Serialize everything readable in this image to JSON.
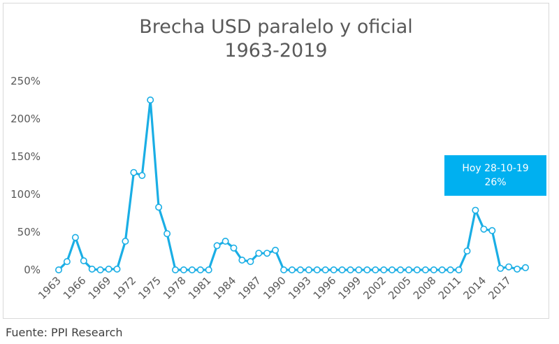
{
  "chart_data": {
    "type": "line",
    "title_line1": "Brecha USD paralelo y oficial",
    "title_line2": "1963-2019",
    "source": "Fuente: PPI Research",
    "ylim": [
      0,
      250
    ],
    "y_ticks": [
      0,
      50,
      100,
      150,
      200,
      250
    ],
    "y_tick_labels": [
      "0%",
      "50%",
      "100%",
      "150%",
      "200%",
      "250%"
    ],
    "x_ticks": [
      1963,
      1966,
      1969,
      1972,
      1975,
      1978,
      1981,
      1984,
      1987,
      1990,
      1993,
      1996,
      1999,
      2002,
      2005,
      2008,
      2011,
      2014,
      2017
    ],
    "x_tick_labels": [
      "1963",
      "1966",
      "1969",
      "1972",
      "1975",
      "1978",
      "1981",
      "1984",
      "1987",
      "1990",
      "1993",
      "1996",
      "1999",
      "2002",
      "2005",
      "2008",
      "2011",
      "2014",
      "2017"
    ],
    "x": [
      1963,
      1964,
      1965,
      1966,
      1967,
      1968,
      1969,
      1970,
      1971,
      1972,
      1973,
      1974,
      1975,
      1976,
      1977,
      1978,
      1979,
      1980,
      1981,
      1982,
      1983,
      1984,
      1985,
      1986,
      1987,
      1988,
      1989,
      1990,
      1991,
      1992,
      1993,
      1994,
      1995,
      1996,
      1997,
      1998,
      1999,
      2000,
      2001,
      2002,
      2003,
      2004,
      2005,
      2006,
      2007,
      2008,
      2009,
      2010,
      2011,
      2012,
      2013,
      2014,
      2015,
      2016,
      2017,
      2018,
      2019
    ],
    "values": [
      0,
      11,
      43,
      12,
      1,
      0,
      1,
      1,
      38,
      129,
      125,
      225,
      83,
      48,
      0,
      0,
      0,
      0,
      0,
      32,
      38,
      29,
      13,
      11,
      22,
      22,
      26,
      0,
      0,
      0,
      0,
      0,
      0,
      0,
      0,
      0,
      0,
      0,
      0,
      0,
      0,
      0,
      0,
      0,
      0,
      0,
      0,
      0,
      0,
      25,
      79,
      54,
      52,
      2,
      4,
      1,
      3
    ],
    "line_color": "#1aaee5",
    "marker_fill": "#ffffff",
    "annotation": {
      "line1": "Hoy 28-10-19",
      "line2": "26%",
      "color": "#00b0f0"
    }
  }
}
